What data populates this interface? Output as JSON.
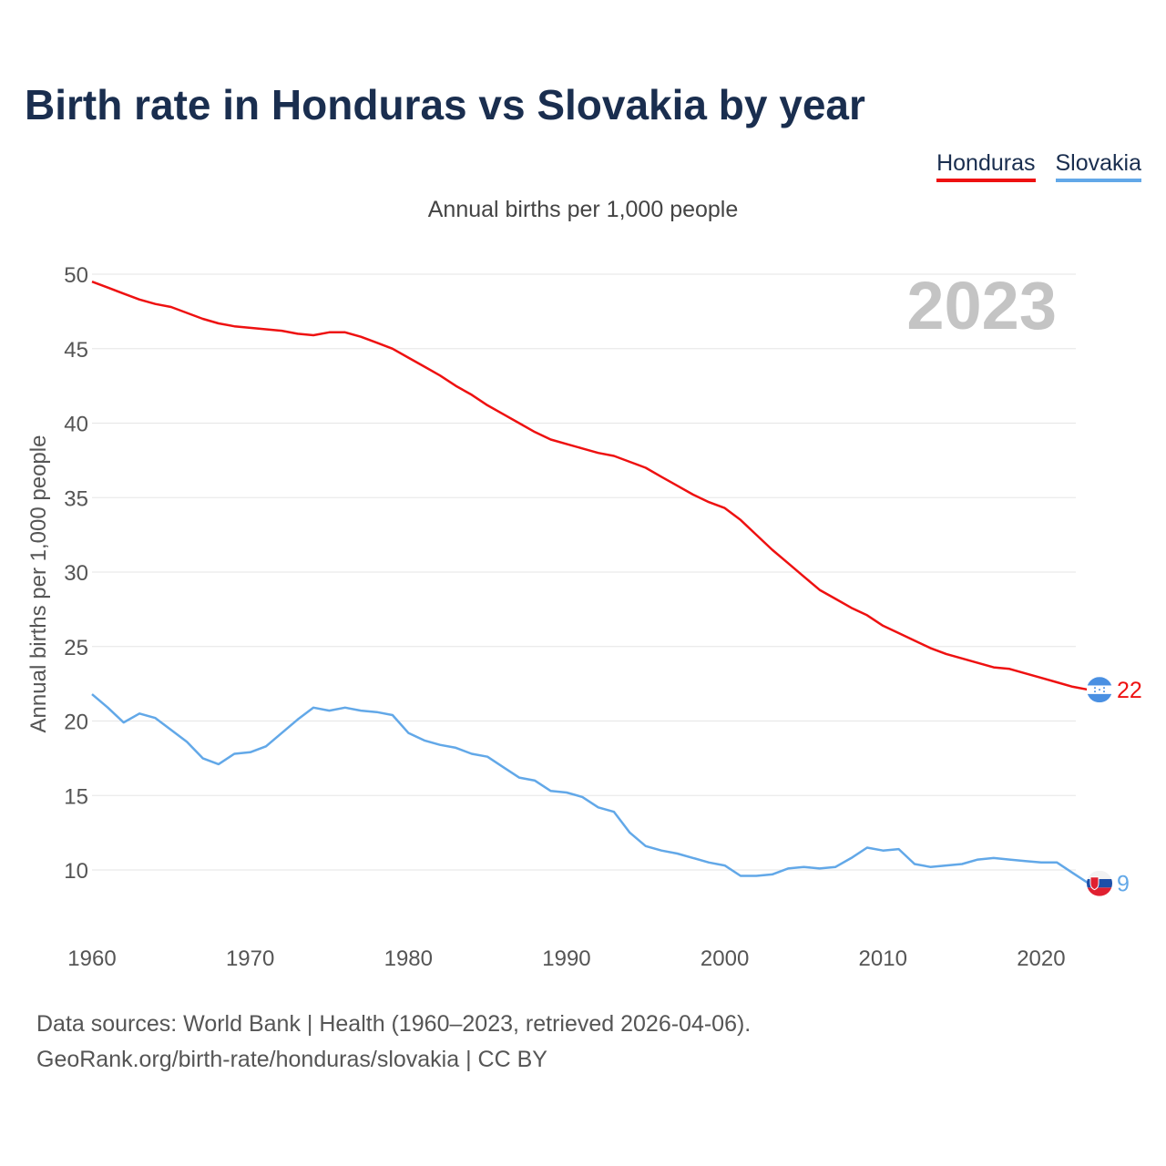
{
  "title": "Birth rate in Honduras vs Slovakia by year",
  "subtitle": "Annual births per 1,000 people",
  "legend": [
    {
      "label": "Honduras",
      "color": "#ee1111"
    },
    {
      "label": "Slovakia",
      "color": "#62a8e8"
    }
  ],
  "year_watermark": "2023",
  "footer": {
    "line1": "Data sources: World Bank | Health (1960–2023, retrieved 2026-04-06).",
    "line2": "GeoRank.org/birth-rate/honduras/slovakia | CC BY"
  },
  "chart_data": {
    "type": "line",
    "title": "Birth rate in Honduras vs Slovakia by year",
    "ylabel": "Annual births per 1,000 people",
    "xlabel": "",
    "xlim": [
      1960,
      2023
    ],
    "ylim": [
      5,
      50
    ],
    "yticks": [
      10,
      15,
      20,
      25,
      30,
      35,
      40,
      45,
      50
    ],
    "xticks": [
      1960,
      1970,
      1980,
      1990,
      2000,
      2010,
      2020
    ],
    "grid": true,
    "legend_position": "top-right",
    "x": [
      1960,
      1961,
      1962,
      1963,
      1964,
      1965,
      1966,
      1967,
      1968,
      1969,
      1970,
      1971,
      1972,
      1973,
      1974,
      1975,
      1976,
      1977,
      1978,
      1979,
      1980,
      1981,
      1982,
      1983,
      1984,
      1985,
      1986,
      1987,
      1988,
      1989,
      1990,
      1991,
      1992,
      1993,
      1994,
      1995,
      1996,
      1997,
      1998,
      1999,
      2000,
      2001,
      2002,
      2003,
      2004,
      2005,
      2006,
      2007,
      2008,
      2009,
      2010,
      2011,
      2012,
      2013,
      2014,
      2015,
      2016,
      2017,
      2018,
      2019,
      2020,
      2021,
      2022,
      2023
    ],
    "series": [
      {
        "name": "Honduras",
        "color": "#ee1111",
        "end_label": "22",
        "flag": "honduras-flag",
        "values": [
          49.5,
          49.1,
          48.7,
          48.3,
          48.0,
          47.8,
          47.4,
          47.0,
          46.7,
          46.5,
          46.4,
          46.3,
          46.2,
          46.0,
          45.9,
          46.1,
          46.1,
          45.8,
          45.4,
          45.0,
          44.4,
          43.8,
          43.2,
          42.5,
          41.9,
          41.2,
          40.6,
          40.0,
          39.4,
          38.9,
          38.6,
          38.3,
          38.0,
          37.8,
          37.4,
          37.0,
          36.4,
          35.8,
          35.2,
          34.7,
          34.3,
          33.5,
          32.5,
          31.5,
          30.6,
          29.7,
          28.8,
          28.2,
          27.6,
          27.1,
          26.4,
          25.9,
          25.4,
          24.9,
          24.5,
          24.2,
          23.9,
          23.6,
          23.5,
          23.2,
          22.9,
          22.6,
          22.3,
          22.1
        ]
      },
      {
        "name": "Slovakia",
        "color": "#62a8e8",
        "end_label": "9",
        "flag": "slovakia-flag",
        "values": [
          21.8,
          20.9,
          19.9,
          20.5,
          20.2,
          19.4,
          18.6,
          17.5,
          17.1,
          17.8,
          17.9,
          18.3,
          19.2,
          20.1,
          20.9,
          20.7,
          20.9,
          20.7,
          20.6,
          20.4,
          19.2,
          18.7,
          18.4,
          18.2,
          17.8,
          17.6,
          16.9,
          16.2,
          16.0,
          15.3,
          15.2,
          14.9,
          14.2,
          13.9,
          12.5,
          11.6,
          11.3,
          11.1,
          10.8,
          10.5,
          10.3,
          9.6,
          9.6,
          9.7,
          10.1,
          10.2,
          10.1,
          10.2,
          10.8,
          11.5,
          11.3,
          11.4,
          10.4,
          10.2,
          10.3,
          10.4,
          10.7,
          10.8,
          10.7,
          10.6,
          10.5,
          10.5,
          9.8,
          9.1
        ]
      }
    ]
  }
}
